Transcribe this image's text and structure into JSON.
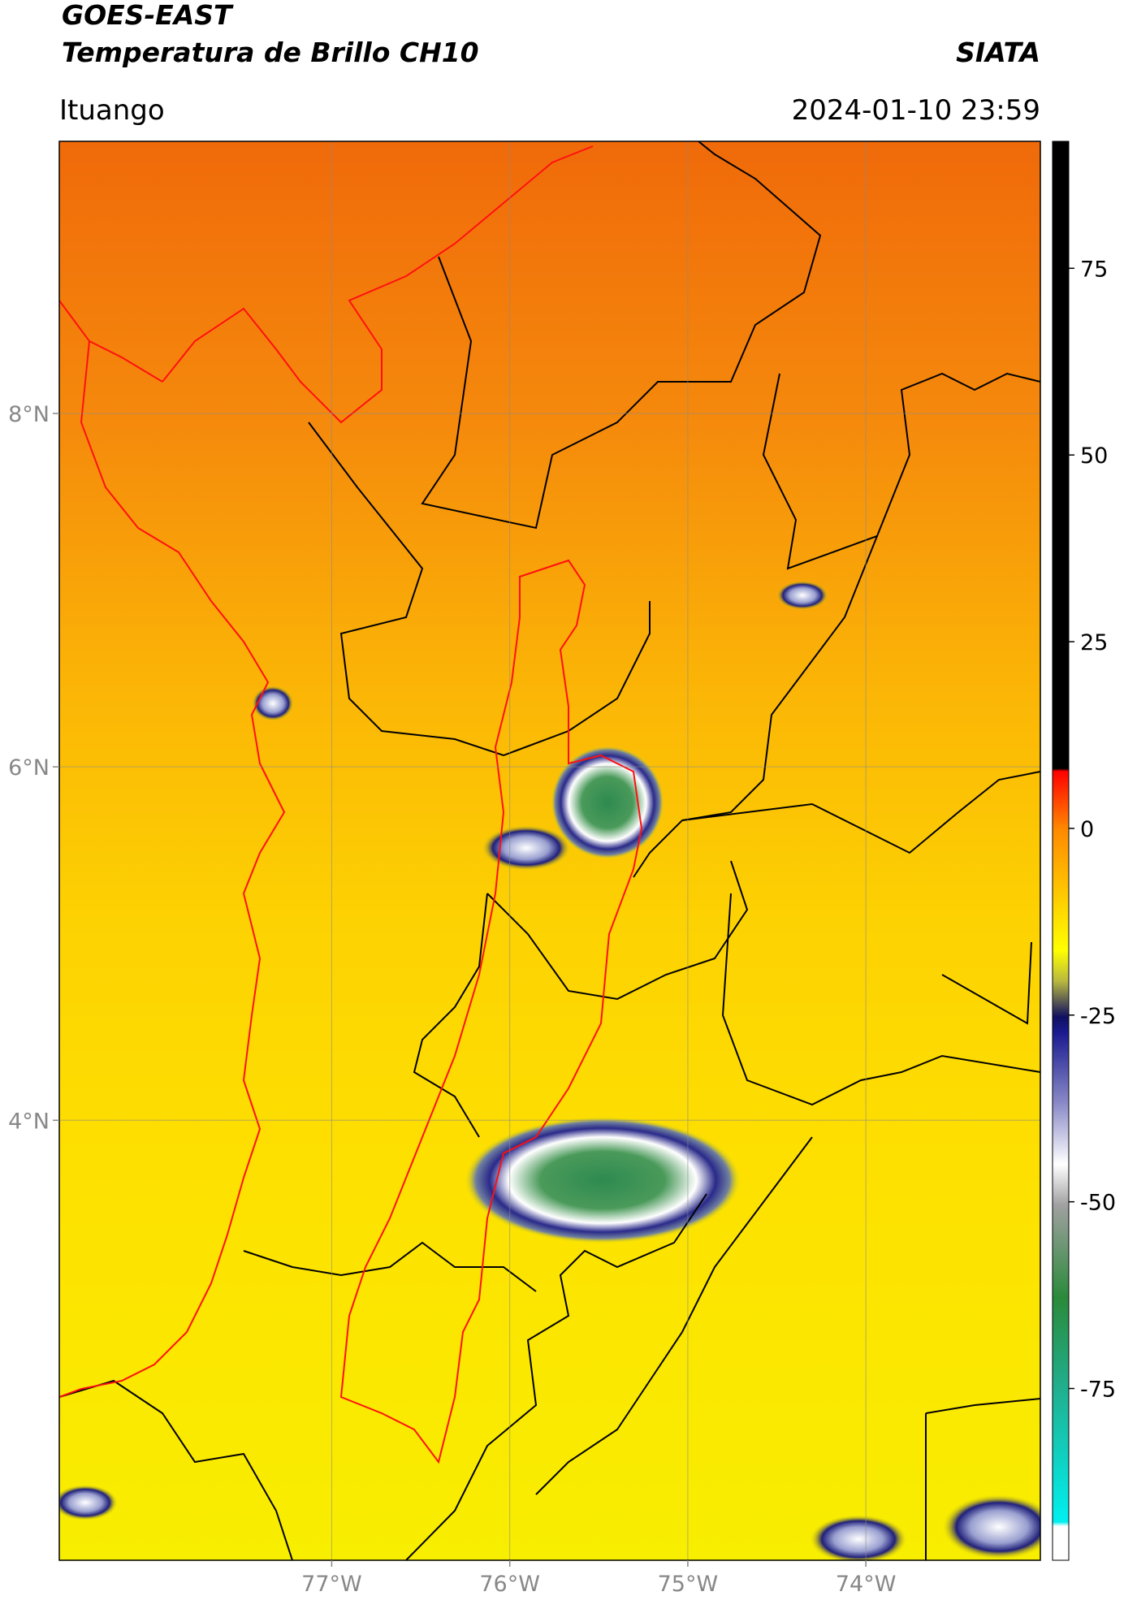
{
  "header": {
    "title": "GOES-EAST",
    "subtitle": "Temperatura de Brillo CH10",
    "org": "SIATA",
    "location": "Ituango",
    "datetime": "2024-01-10 23:59"
  },
  "map": {
    "xlim": [
      -78.53,
      -73.02
    ],
    "ylim": [
      1.51,
      9.54
    ],
    "xticks": [
      {
        "value": -77,
        "label": "77°W"
      },
      {
        "value": -76,
        "label": "76°W"
      },
      {
        "value": -75,
        "label": "75°W"
      },
      {
        "value": -74,
        "label": "74°W"
      }
    ],
    "yticks": [
      {
        "value": 4,
        "label": "4°N"
      },
      {
        "value": 6,
        "label": "6°N"
      },
      {
        "value": 8,
        "label": "8°N"
      }
    ],
    "grid": true
  },
  "colorbar": {
    "lim": [
      -98,
      92
    ],
    "ticks": [
      -75,
      -50,
      -25,
      0,
      25,
      50,
      75
    ]
  }
}
